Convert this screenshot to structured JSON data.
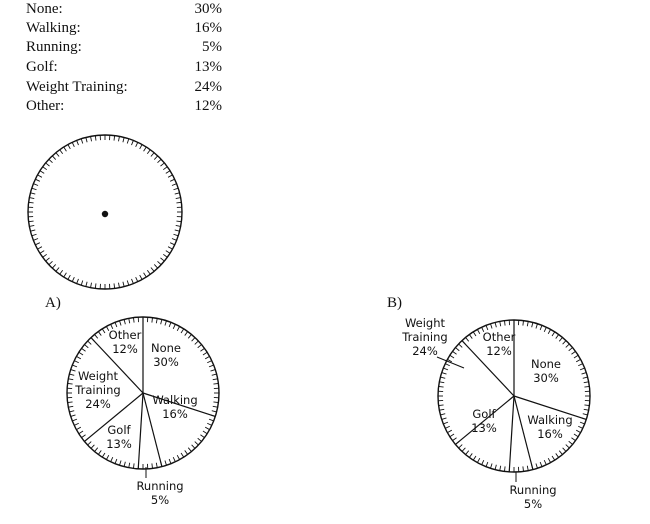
{
  "table": {
    "rows": [
      {
        "label": "None:",
        "value": "30%"
      },
      {
        "label": "Walking:",
        "value": "16%"
      },
      {
        "label": "Running:",
        "value": "5%"
      },
      {
        "label": "Golf:",
        "value": "13%"
      },
      {
        "label": "Weight Training:",
        "value": "24%"
      },
      {
        "label": "Other:",
        "value": "12%"
      }
    ]
  },
  "options": {
    "a_label": "A)",
    "b_label": "B)"
  },
  "chart_data": [
    {
      "type": "pie",
      "title": "",
      "note": "blank protractor circle with center point"
    },
    {
      "type": "pie",
      "option": "A)",
      "slices": [
        {
          "name": "None",
          "value": 30,
          "text": "30%"
        },
        {
          "name": "Walking",
          "value": 16,
          "text": "16%"
        },
        {
          "name": "Running",
          "value": 5,
          "text": "5%"
        },
        {
          "name": "Golf",
          "value": 13,
          "text": "13%"
        },
        {
          "name": "Weight Training",
          "value": 24,
          "text": "24%"
        },
        {
          "name": "Other",
          "value": 12,
          "text": "12%"
        }
      ]
    },
    {
      "type": "pie",
      "option": "B)",
      "slices": [
        {
          "name": "None",
          "value": 30,
          "text": "30%"
        },
        {
          "name": "Walking",
          "value": 16,
          "text": "16%"
        },
        {
          "name": "Running",
          "value": 5,
          "text": "5%"
        },
        {
          "name": "Golf",
          "value": 13,
          "text": "13%"
        },
        {
          "name": "Weight Training",
          "value": 24,
          "text": "24%"
        },
        {
          "name": "Other",
          "value": 12,
          "text": "12%"
        }
      ]
    }
  ]
}
